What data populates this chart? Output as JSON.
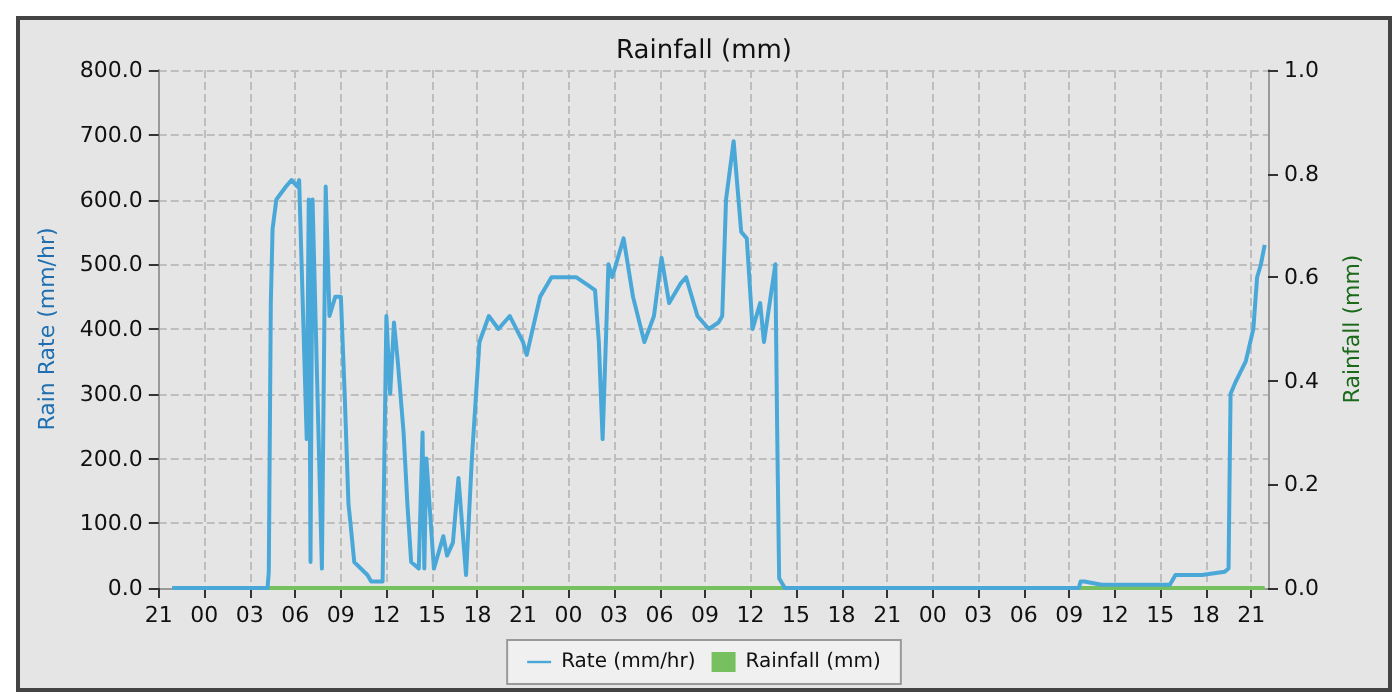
{
  "chart_data": {
    "type": "line",
    "title": "Rainfall (mm)",
    "ylabel": "Rain Rate (mm/hr)",
    "y2label": "Rainfall (mm)",
    "xlim": [
      "--01-01T21:00",
      "--01-04T22:06"
    ],
    "xticks": [
      {
        "value": "--01-01T21:00",
        "label": "21"
      },
      {
        "value": "--01-02T00:00",
        "label": "00"
      },
      {
        "value": "--01-02T03:00",
        "label": "03"
      },
      {
        "value": "--01-02T06:00",
        "label": "06"
      },
      {
        "value": "--01-02T09:00",
        "label": "09"
      },
      {
        "value": "--01-02T12:00",
        "label": "12"
      },
      {
        "value": "--01-02T15:00",
        "label": "15"
      },
      {
        "value": "--01-02T18:00",
        "label": "18"
      },
      {
        "value": "--01-02T21:00",
        "label": "21"
      },
      {
        "value": "--01-03T00:00",
        "label": "00"
      },
      {
        "value": "--01-03T03:00",
        "label": "03"
      },
      {
        "value": "--01-03T06:00",
        "label": "06"
      },
      {
        "value": "--01-03T09:00",
        "label": "09"
      },
      {
        "value": "--01-03T12:00",
        "label": "12"
      },
      {
        "value": "--01-03T15:00",
        "label": "15"
      },
      {
        "value": "--01-03T18:00",
        "label": "18"
      },
      {
        "value": "--01-03T21:00",
        "label": "21"
      },
      {
        "value": "--01-04T00:00",
        "label": "00"
      },
      {
        "value": "--01-04T03:00",
        "label": "03"
      },
      {
        "value": "--01-04T06:00",
        "label": "06"
      },
      {
        "value": "--01-04T09:00",
        "label": "09"
      },
      {
        "value": "--01-04T12:00",
        "label": "12"
      },
      {
        "value": "--01-04T15:00",
        "label": "15"
      },
      {
        "value": "--01-04T18:00",
        "label": "18"
      },
      {
        "value": "--01-04T21:00",
        "label": "21"
      }
    ],
    "ylim": [
      0,
      800
    ],
    "yticks": [
      {
        "value": 0,
        "label": "0.0"
      },
      {
        "value": 100,
        "label": "100.0"
      },
      {
        "value": 200,
        "label": "200.0"
      },
      {
        "value": 300,
        "label": "300.0"
      },
      {
        "value": 400,
        "label": "400.0"
      },
      {
        "value": 500,
        "label": "500.0"
      },
      {
        "value": 600,
        "label": "600.0"
      },
      {
        "value": 700,
        "label": "700.0"
      },
      {
        "value": 800,
        "label": "800.0"
      }
    ],
    "y2lim": [
      0,
      1
    ],
    "y2ticks": [
      {
        "value": 0,
        "label": "0.0"
      },
      {
        "value": 0.2,
        "label": "0.2"
      },
      {
        "value": 0.4,
        "label": "0.4"
      },
      {
        "value": 0.6,
        "label": "0.6"
      },
      {
        "value": 0.8,
        "label": "0.8"
      },
      {
        "value": 1,
        "label": "1.0"
      }
    ],
    "grid": true,
    "legend": "bottom",
    "marker": "none",
    "line_style": "solid",
    "series": [
      {
        "name": "Rate (mm/hr)",
        "color": "#4aa8d8",
        "x": [
          "--01-01T21:53",
          "--01-02T04:10",
          "--01-02T04:15",
          "--01-02T04:23",
          "--01-02T04:30",
          "--01-02T04:45",
          "--01-02T05:23",
          "--01-02T05:45",
          "--01-02T06:08",
          "--01-02T06:15",
          "--01-02T06:45",
          "--01-02T06:53",
          "--01-02T07:00",
          "--01-02T07:08",
          "--01-02T07:45",
          "--01-02T08:00",
          "--01-02T08:15",
          "--01-02T08:38",
          "--01-02T09:00",
          "--01-02T09:15",
          "--01-02T09:30",
          "--01-02T09:38",
          "--01-02T09:53",
          "--01-02T10:45",
          "--01-02T11:00",
          "--01-02T11:45",
          "--01-02T12:00",
          "--01-02T12:15",
          "--01-02T12:30",
          "--01-02T12:45",
          "--01-02T13:08",
          "--01-02T13:23",
          "--01-02T13:38",
          "--01-02T14:08",
          "--01-02T14:23",
          "--01-02T14:30",
          "--01-02T14:38",
          "--01-02T15:08",
          "--01-02T15:45",
          "--01-02T16:00",
          "--01-02T16:23",
          "--01-02T16:45",
          "--01-02T17:15",
          "--01-02T17:38",
          "--01-02T18:08",
          "--01-02T18:45",
          "--01-02T19:23",
          "--01-02T20:08",
          "--01-02T21:00",
          "--01-02T21:15",
          "--01-02T22:08",
          "--01-02T22:53",
          "--01-03T00:30",
          "--01-03T01:08",
          "--01-03T01:45",
          "--01-03T02:00",
          "--01-03T02:15",
          "--01-03T02:38",
          "--01-03T02:53",
          "--01-03T03:38",
          "--01-03T04:15",
          "--01-03T05:00",
          "--01-03T05:38",
          "--01-03T06:08",
          "--01-03T06:38",
          "--01-03T07:23",
          "--01-03T07:45",
          "--01-03T08:30",
          "--01-03T09:15",
          "--01-03T09:53",
          "--01-03T10:08",
          "--01-03T10:23",
          "--01-03T10:53",
          "--01-03T11:23",
          "--01-03T11:45",
          "--01-03T12:08",
          "--01-03T12:38",
          "--01-03T12:53",
          "--01-03T13:08",
          "--01-03T13:38",
          "--01-03T13:45",
          "--01-03T13:53",
          "--01-03T14:08",
          "--01-03T14:15",
          "--01-04T09:38",
          "--01-04T09:45",
          "--01-04T10:00",
          "--01-04T11:08",
          "--01-04T15:38",
          "--01-04T16:00",
          "--01-04T17:45",
          "--01-04T19:15",
          "--01-04T19:30",
          "--01-04T19:38",
          "--01-04T20:00",
          "--01-04T20:38",
          "--01-04T21:08",
          "--01-04T21:23",
          "--01-04T21:38",
          "--01-04T21:53"
        ],
        "values": [
          0,
          0,
          25,
          440,
          555,
          600,
          620,
          630,
          620,
          630,
          230,
          600,
          40,
          600,
          30,
          620,
          420,
          450,
          450,
          300,
          130,
          100,
          40,
          20,
          10,
          10,
          420,
          300,
          410,
          350,
          240,
          130,
          40,
          30,
          240,
          30,
          200,
          30,
          80,
          50,
          70,
          170,
          20,
          200,
          380,
          420,
          400,
          420,
          380,
          360,
          450,
          480,
          480,
          470,
          460,
          380,
          230,
          500,
          480,
          540,
          450,
          380,
          420,
          510,
          440,
          470,
          480,
          420,
          400,
          410,
          420,
          600,
          690,
          550,
          540,
          400,
          440,
          380,
          420,
          500,
          250,
          15,
          5,
          0,
          0,
          10,
          10,
          5,
          5,
          20,
          20,
          25,
          30,
          300,
          320,
          350,
          400,
          480,
          500,
          530
        ]
      },
      {
        "name": "Rainfall (mm)",
        "color": "#77c060",
        "axis": "y2",
        "x": [
          "--01-01T21:53",
          "--01-04T21:53"
        ],
        "values": [
          0,
          0
        ]
      }
    ]
  }
}
